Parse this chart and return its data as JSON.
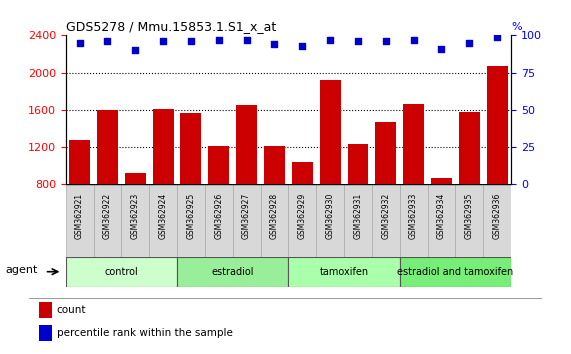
{
  "title": "GDS5278 / Mmu.15853.1.S1_x_at",
  "samples": [
    "GSM362921",
    "GSM362922",
    "GSM362923",
    "GSM362924",
    "GSM362925",
    "GSM362926",
    "GSM362927",
    "GSM362928",
    "GSM362929",
    "GSM362930",
    "GSM362931",
    "GSM362932",
    "GSM362933",
    "GSM362934",
    "GSM362935",
    "GSM362936"
  ],
  "counts": [
    1270,
    1600,
    920,
    1610,
    1560,
    1215,
    1650,
    1215,
    1040,
    1920,
    1230,
    1470,
    1660,
    870,
    1580,
    2070
  ],
  "percentile_ranks": [
    95,
    96,
    90,
    96,
    96,
    97,
    97,
    94,
    93,
    97,
    96,
    96,
    97,
    91,
    95,
    99
  ],
  "groups": [
    {
      "label": "control",
      "start": 0,
      "end": 4,
      "color": "#ccffcc"
    },
    {
      "label": "estradiol",
      "start": 4,
      "end": 8,
      "color": "#99ee99"
    },
    {
      "label": "tamoxifen",
      "start": 8,
      "end": 12,
      "color": "#aaffaa"
    },
    {
      "label": "estradiol and tamoxifen",
      "start": 12,
      "end": 16,
      "color": "#77ee77"
    }
  ],
  "bar_color": "#cc0000",
  "dot_color": "#0000cc",
  "ylim_left": [
    800,
    2400
  ],
  "ylim_right": [
    0,
    100
  ],
  "yticks_left": [
    800,
    1200,
    1600,
    2000,
    2400
  ],
  "yticks_right": [
    0,
    25,
    50,
    75,
    100
  ],
  "grid_values": [
    1200,
    1600,
    2000
  ],
  "agent_label": "agent",
  "legend_count_label": "count",
  "legend_pct_label": "percentile rank within the sample",
  "sample_bg_color": "#d8d8d8"
}
